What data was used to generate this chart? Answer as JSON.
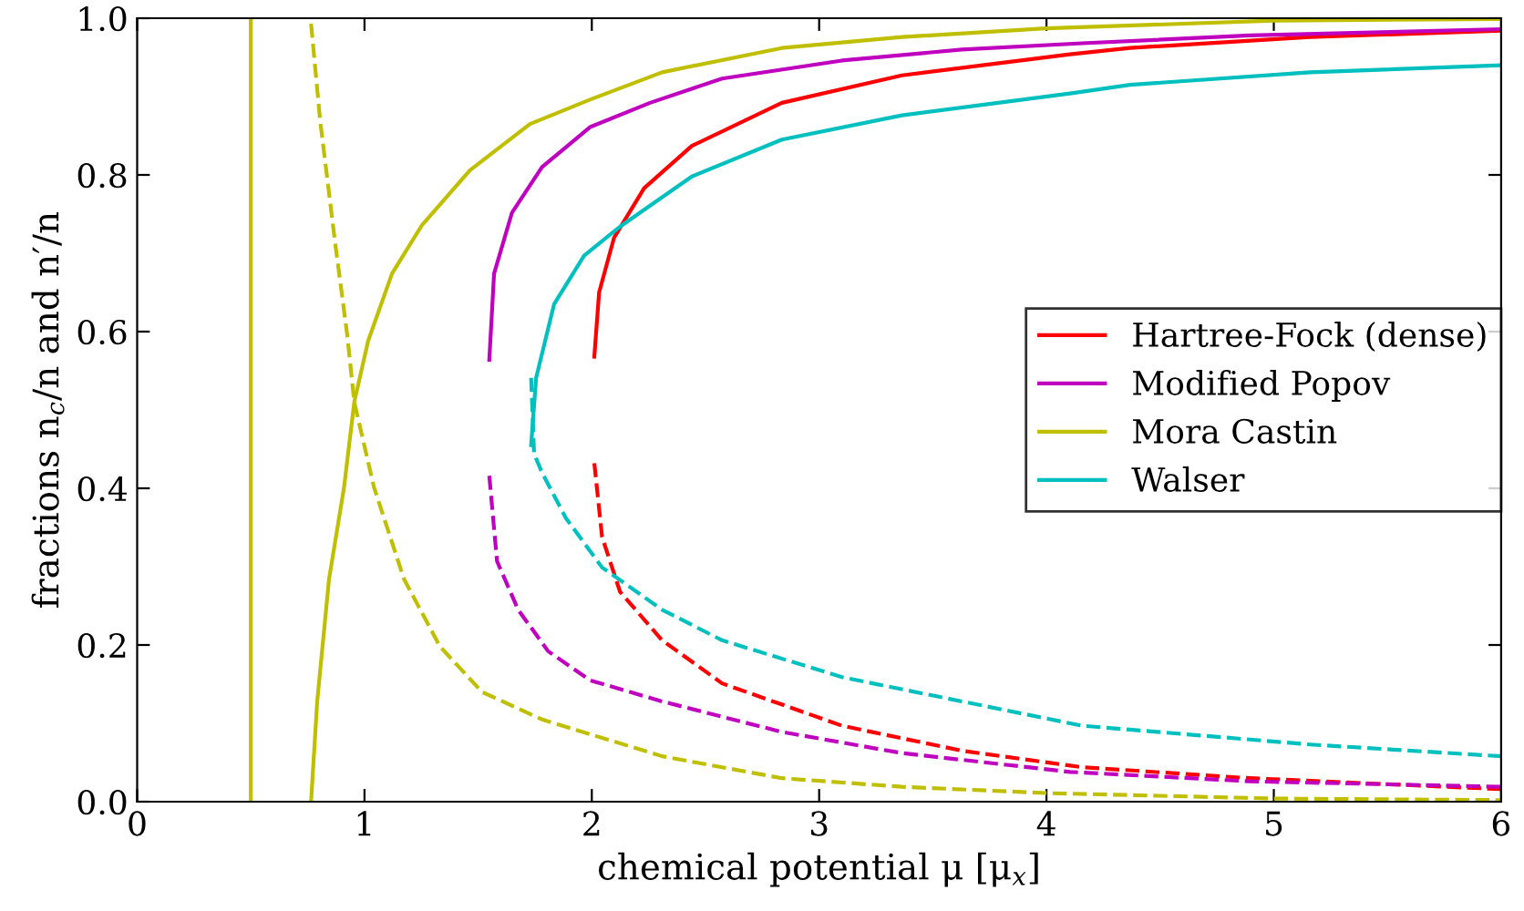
{
  "chart_data": {
    "type": "line",
    "xlabel": "chemical potential μ [μ$_{x}$]",
    "ylabel": "fractions n$_{c}$/n and n′/n",
    "xlim": [
      0,
      6
    ],
    "ylim": [
      0,
      1
    ],
    "xticks": [
      0,
      1,
      2,
      3,
      4,
      5,
      6
    ],
    "yticks": [
      {
        "value": 0,
        "label": "0.0"
      },
      {
        "value": 0.2,
        "label": "0.2"
      },
      {
        "value": 0.4,
        "label": "0.4"
      },
      {
        "value": 0.6,
        "label": "0.6"
      },
      {
        "value": 0.8,
        "label": "0.8"
      },
      {
        "value": 1,
        "label": "1.0"
      }
    ],
    "grid": false,
    "legend": "right",
    "marker": "none",
    "series": [
      {
        "name": "Hartree-Fock (dense)",
        "color": "#ff0000",
        "line_style": "solid",
        "x": [
          2.011,
          2.032,
          2.098,
          2.23,
          2.44,
          2.836,
          3.364,
          4.103,
          4.367,
          5.159,
          6
        ],
        "values": [
          0.568,
          0.65,
          0.72,
          0.783,
          0.837,
          0.892,
          0.927,
          0.954,
          0.962,
          0.976,
          0.984
        ]
      },
      {
        "name": "Modified Popov",
        "color": "#bf00bf",
        "line_style": "solid",
        "x": [
          1.549,
          1.57,
          1.649,
          1.781,
          1.992,
          2.256,
          2.573,
          3.1,
          3.628,
          4.156,
          4.894,
          6
        ],
        "values": [
          0.564,
          0.674,
          0.752,
          0.81,
          0.861,
          0.892,
          0.923,
          0.946,
          0.96,
          0.968,
          0.978,
          0.986
        ]
      },
      {
        "name": "Mora Castin",
        "color": "#bfbf00",
        "line_style": "solid",
        "x": [
          0.765,
          0.792,
          0.844,
          0.91,
          0.955,
          1.016,
          1.121,
          1.253,
          1.464,
          1.728,
          1.992,
          2.309,
          2.836,
          3.364,
          3.997,
          5.0,
          6
        ],
        "values": [
          0,
          0.128,
          0.284,
          0.401,
          0.51,
          0.588,
          0.674,
          0.736,
          0.806,
          0.865,
          0.896,
          0.931,
          0.962,
          0.976,
          0.987,
          0.997,
          0.999
        ]
      },
      {
        "name": "Walser",
        "color": "#00bfbf",
        "line_style": "solid",
        "x": [
          1.733,
          1.755,
          1.834,
          1.966,
          2.124,
          2.44,
          2.836,
          3.364,
          4.103,
          4.367,
          5.159,
          6
        ],
        "values": [
          0.455,
          0.541,
          0.635,
          0.697,
          0.734,
          0.798,
          0.845,
          0.876,
          0.904,
          0.915,
          0.931,
          0.94
        ]
      },
      {
        "color": "#bfbf00",
        "line_style": "solid",
        "x": [
          0.5,
          0.5
        ],
        "values": [
          0,
          1
        ]
      },
      {
        "color": "#ff0000",
        "line_style": "dashed",
        "x": [
          2.011,
          2.045,
          2.124,
          2.309,
          2.573,
          3.1,
          3.628,
          4.156,
          4.894,
          6
        ],
        "values": [
          0.432,
          0.338,
          0.268,
          0.206,
          0.151,
          0.097,
          0.065,
          0.044,
          0.03,
          0.016
        ]
      },
      {
        "color": "#bf00bf",
        "line_style": "dashed",
        "x": [
          1.549,
          1.583,
          1.676,
          1.808,
          1.992,
          2.309,
          2.836,
          3.364,
          4.103,
          4.894,
          6
        ],
        "values": [
          0.416,
          0.307,
          0.245,
          0.192,
          0.155,
          0.128,
          0.089,
          0.062,
          0.038,
          0.026,
          0.019
        ]
      },
      {
        "color": "#bfbf00",
        "line_style": "dashed",
        "x": [
          0.765,
          0.805,
          0.871,
          0.924,
          0.955,
          1.042,
          1.174,
          1.332,
          1.517,
          1.781,
          2.309,
          2.836,
          3.364,
          3.997,
          5.0,
          6
        ],
        "values": [
          0.993,
          0.869,
          0.713,
          0.596,
          0.51,
          0.401,
          0.284,
          0.198,
          0.14,
          0.105,
          0.058,
          0.03,
          0.019,
          0.011,
          0.004,
          0.002
        ]
      },
      {
        "color": "#00bfbf",
        "line_style": "dashed",
        "x": [
          1.733,
          1.746,
          1.781,
          1.886,
          2.045,
          2.309,
          2.573,
          3.1,
          3.628,
          4.156,
          5.159,
          6
        ],
        "values": [
          0.541,
          0.444,
          0.42,
          0.362,
          0.299,
          0.245,
          0.206,
          0.159,
          0.128,
          0.097,
          0.073,
          0.058
        ]
      }
    ]
  }
}
